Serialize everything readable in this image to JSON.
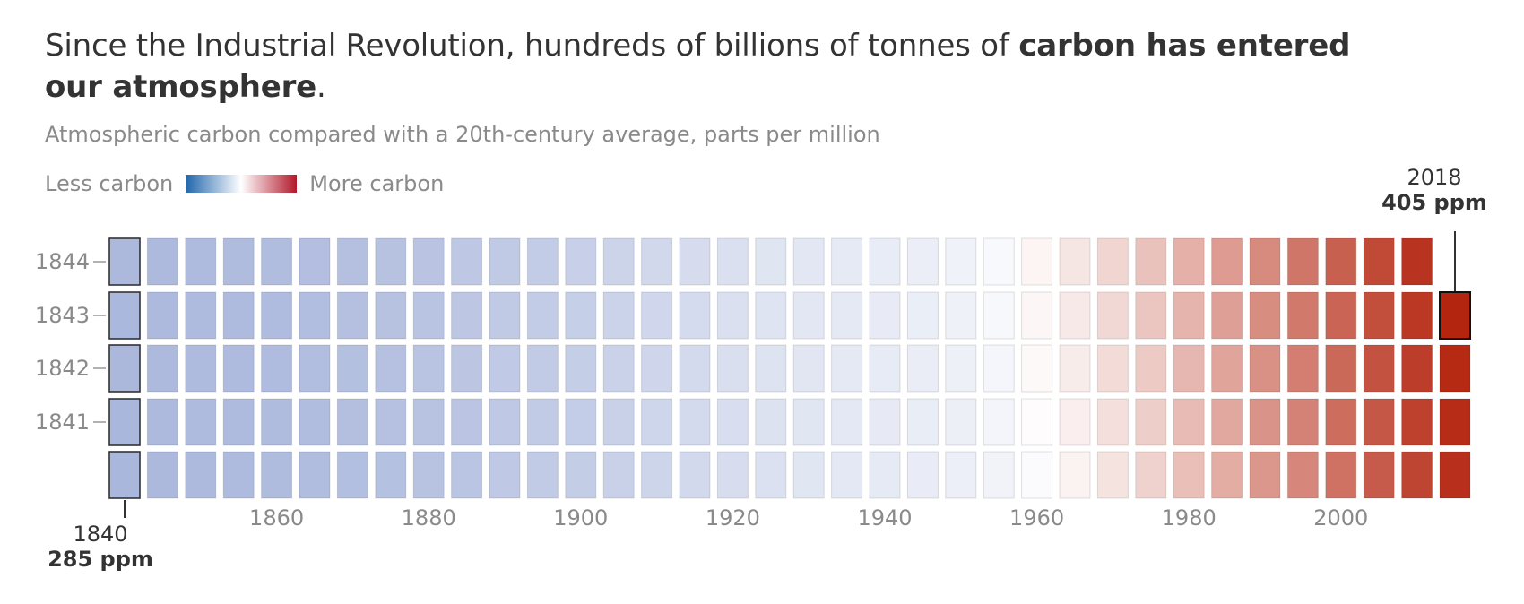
{
  "title": {
    "lead": "Since the Industrial Revolution, hundreds of billions of tonnes of ",
    "bold": "carbon has entered our atmosphere",
    "tail": "."
  },
  "subtitle": "Atmospheric carbon compared with a 20th-century average, parts per million",
  "legend": {
    "low_label": "Less carbon",
    "high_label": "More carbon"
  },
  "annotations": {
    "start": {
      "year": "1840",
      "ppm": "285 ppm"
    },
    "end": {
      "year": "2018",
      "ppm": "405 ppm"
    }
  },
  "colors": {
    "low": "#2166ac",
    "mid": "#ffffff",
    "high": "#b2182b"
  },
  "chart_data": {
    "type": "heatmap",
    "title": "Since the Industrial Revolution, hundreds of billions of tonnes of carbon has entered our atmosphere.",
    "subtitle": "Atmospheric carbon compared with a 20th-century average, parts per million",
    "xlabel": "",
    "ylabel": "",
    "x_ticks": [
      "1860",
      "1880",
      "1900",
      "1920",
      "1940",
      "1960",
      "1980",
      "2000"
    ],
    "y_ticks": [
      "1841",
      "1842",
      "1843",
      "1844"
    ],
    "grid": false,
    "legend_position": "top-left",
    "start_year": 1840,
    "end_year": 2018,
    "years_per_cell": 1,
    "rows": 5,
    "column_start_years": [
      1840,
      1845,
      1850,
      1855,
      1860,
      1865,
      1870,
      1875,
      1880,
      1885,
      1890,
      1895,
      1900,
      1905,
      1910,
      1915,
      1920,
      1925,
      1930,
      1935,
      1940,
      1945,
      1950,
      1955,
      1960,
      1965,
      1970,
      1975,
      1980,
      1985,
      1990,
      1995,
      2000,
      2005,
      2010,
      2015
    ],
    "ppm_by_column": [
      285,
      286,
      286.5,
      287,
      287.5,
      288,
      289,
      290,
      291,
      292,
      294,
      295,
      296,
      298,
      300,
      302,
      304,
      306,
      308,
      309,
      310,
      311,
      312,
      314,
      317,
      320,
      325,
      331,
      338,
      345,
      354,
      361,
      370,
      380,
      390,
      400
    ],
    "reference_ppm": 317,
    "highlighted": [
      {
        "year": 1840,
        "ppm": 285
      },
      {
        "year": 2018,
        "ppm": 405
      }
    ]
  }
}
